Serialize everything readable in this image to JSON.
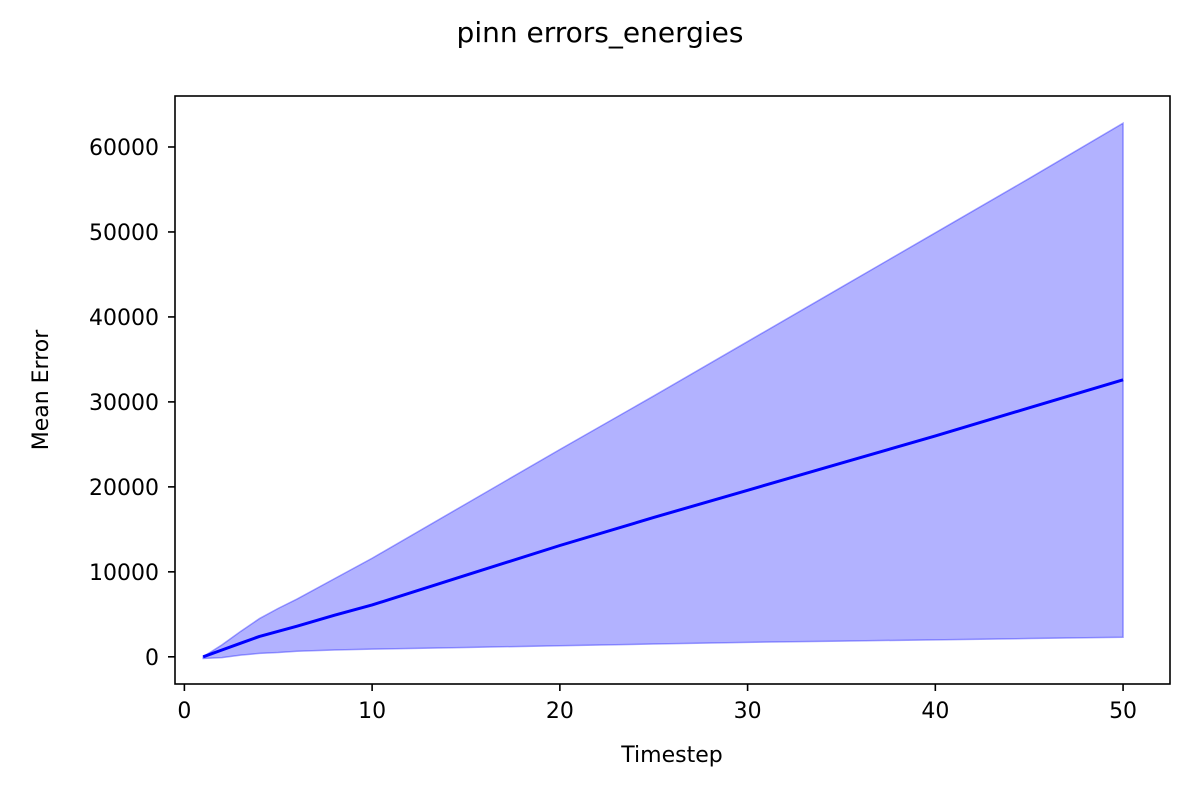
{
  "chart_data": {
    "type": "line",
    "title": "pinn errors_energies",
    "xlabel": "Timestep",
    "ylabel": "Mean Error",
    "xlim": [
      -0.5,
      52.5
    ],
    "ylim": [
      -3200,
      66000
    ],
    "xticks": [
      0,
      10,
      20,
      30,
      40,
      50
    ],
    "yticks": [
      0,
      10000,
      20000,
      30000,
      40000,
      50000,
      60000
    ],
    "grid": false,
    "legend": "none",
    "series": [
      {
        "kind": "line",
        "color": "#0000ff",
        "x": [
          1,
          2,
          3,
          4,
          5,
          6,
          8,
          10,
          15,
          20,
          25,
          30,
          35,
          40,
          45,
          50
        ],
        "y": [
          0,
          800,
          1600,
          2400,
          3000,
          3600,
          4900,
          6100,
          9600,
          13100,
          16400,
          19600,
          22800,
          26000,
          29300,
          32600
        ]
      },
      {
        "kind": "band",
        "color": "#0000ff",
        "opacity": 0.3,
        "x": [
          1,
          2,
          3,
          4,
          5,
          6,
          8,
          10,
          15,
          20,
          25,
          30,
          35,
          40,
          45,
          50
        ],
        "lower": [
          -200,
          -100,
          200,
          400,
          500,
          650,
          800,
          900,
          1100,
          1300,
          1500,
          1700,
          1850,
          2000,
          2150,
          2300
        ],
        "upper": [
          0,
          1400,
          3000,
          4500,
          5700,
          6800,
          9200,
          11600,
          18000,
          24400,
          30700,
          37100,
          43500,
          49900,
          56300,
          62800
        ]
      }
    ]
  }
}
